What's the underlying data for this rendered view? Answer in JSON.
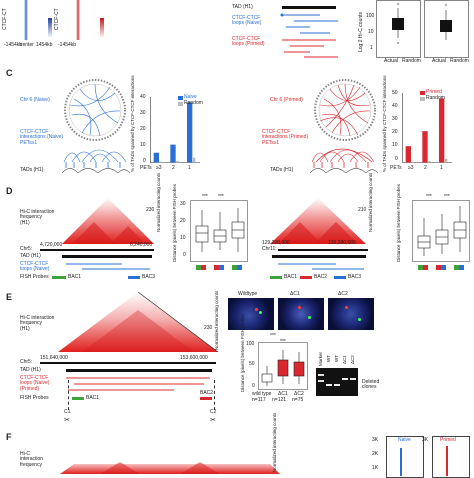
{
  "panels": {
    "c": "C",
    "d": "D",
    "e": "E",
    "f": "F"
  },
  "top": {
    "ctcf_left": "CTCF-CT",
    "ctcf_right": "CTCF-CT",
    "tick_left": "-1454kb",
    "tick_center": "center",
    "tick_right": "1454kb",
    "tick_left2": "-1454kb",
    "tad_label": "TAD (H1)",
    "loops_naive": "CTCF-CTCF\nloops (Naive)",
    "loops_primed": "CTCF-CTCF\nloops (Primed)",
    "box_ylabel": "Log 2 Hi-C counts",
    "box_x1": "Actual",
    "box_x2": "Random",
    "box_ticks": [
      "100",
      "10",
      "1"
    ]
  },
  "c": {
    "left_chr": "Chr 6 (Naive)",
    "right_chr": "Chr 6 (Primed)",
    "left_ctcf": "CTCF-CTCF\ninteractions (Naive)\nPETs≥1",
    "right_ctcf": "CTCF-CTCF\ninteractions (Primed)\nPETs≥1",
    "tads": "TADs (H1)",
    "ylabel": "% of TADs spanned by CTCF-CTCF interactions",
    "legend_naive": "Naive",
    "legend_primed": "Primed",
    "legend_random": "Random",
    "pets": "PETs",
    "x_cats": [
      "≥3",
      "2",
      "1"
    ],
    "y_ticks_left": [
      "40",
      "30",
      "20",
      "10",
      "0"
    ],
    "y_ticks_right": [
      "50",
      "40",
      "30",
      "20",
      "10",
      "0"
    ]
  },
  "chart_data": [
    {
      "type": "bar",
      "categories": [
        "≥3",
        "2",
        "1"
      ],
      "series": [
        {
          "name": "Naive",
          "values": [
            6,
            11,
            37
          ]
        },
        {
          "name": "Random",
          "values": [
            0.5,
            1,
            3
          ]
        }
      ],
      "xlabel": "PETs",
      "ylabel": "% of TADs spanned by CTCF-CTCF interactions",
      "ylim": [
        0,
        40
      ]
    },
    {
      "type": "bar",
      "categories": [
        "≥3",
        "2",
        "1"
      ],
      "series": [
        {
          "name": "Primed",
          "values": [
            13,
            25,
            51
          ]
        },
        {
          "name": "Random",
          "values": [
            0.5,
            1,
            3
          ]
        }
      ],
      "xlabel": "PETs",
      "ylabel": "% of TADs spanned by CTCF-CTCF interactions",
      "ylim": [
        0,
        55
      ]
    }
  ],
  "d": {
    "hic_label": "Hi-C interaction\nfrequency\n(H1)",
    "left_scale": "230",
    "right_scale": "210",
    "norm_label": "Normalized\ninteracting counts",
    "left_chr": "Chr5:",
    "left_start": "4,720,000",
    "left_end": "6,240,000",
    "right_chr": "Chr11:",
    "right_start": "129,200,000",
    "right_end": "130,280,000",
    "tad": "TAD (H1)",
    "loops": "CTCF-CTCF\nloops (Naive)",
    "fish": "FISH Probes",
    "bac1": "BAC1",
    "bac2": "BAC2",
    "bac3": "BAC3",
    "dist_label": "Distance (pixels) between FISH probes",
    "sig": "***",
    "y_ticks": [
      "30",
      "20",
      "10",
      "0"
    ]
  },
  "e": {
    "hic_label": "Hi-C interaction\nfrequency\n(H1)",
    "scale": "230",
    "norm_label": "Normalized\ninteracting counts",
    "chr": "Chr5:",
    "start": "151,640,000",
    "end": "153,600,000",
    "tad": "TAD (H1)",
    "loops": "CTCF-CTCF\nloops (Naive)\n(Primed)",
    "fish": "FISH Probes",
    "bac1": "BAC1",
    "bac2": "BAC2",
    "c1": "C1",
    "c2": "C2",
    "micro_wt": "Wildtype",
    "micro_c1": "ΔC1",
    "micro_c2": "ΔC2",
    "dist_label": "Distance (pixels) between FISH probes",
    "sig": "***",
    "x_cats": [
      "wild type",
      "ΔC1",
      "ΔC2"
    ],
    "n_vals": [
      "n=117",
      "n=121",
      "n=75"
    ],
    "y_ticks": [
      "100",
      "50",
      "0"
    ],
    "gel_marker": "Marker",
    "gel_lanes": [
      "WT",
      "WT",
      "ΔC1",
      "ΔC2"
    ],
    "deleted": "Deleted\nclones"
  },
  "f": {
    "hic_label": "Hi-C\ninteraction\nfrequency",
    "norm_label": "Normalized\ninteracting counts",
    "naive": "Naive",
    "primed": "Primed",
    "ticks": [
      "3K",
      "2K",
      "1K"
    ]
  }
}
